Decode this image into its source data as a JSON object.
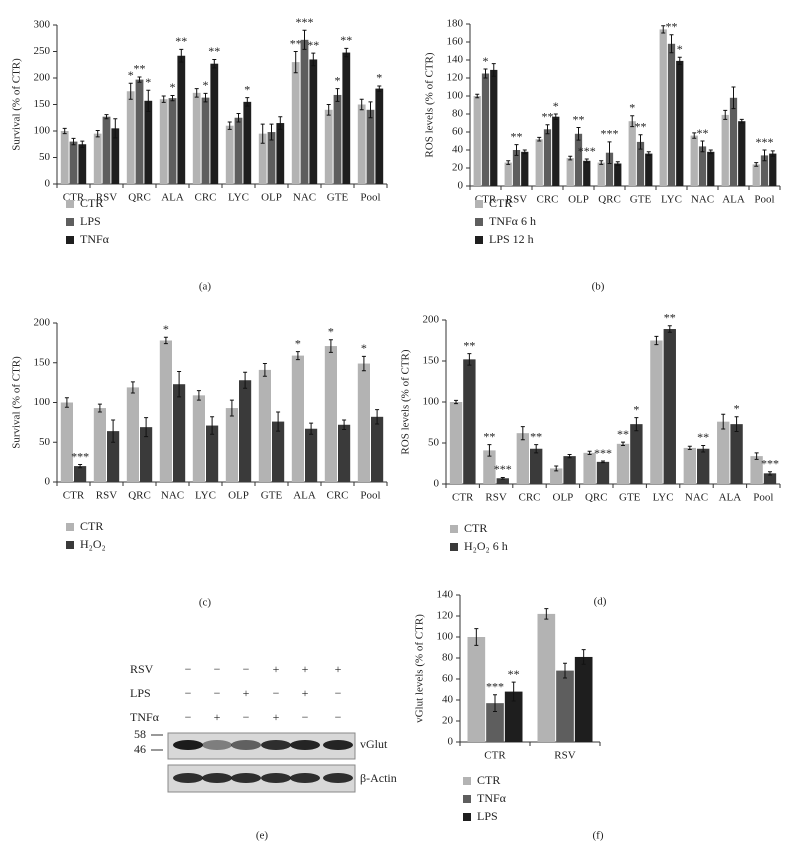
{
  "chart_data": [
    {
      "type": "bar",
      "panel_label": "(a)",
      "y_label": "Survival (% of CTR)",
      "categories": [
        "CTR",
        "RSV",
        "QRC",
        "ALA",
        "CRC",
        "LYC",
        "OLP",
        "NAC",
        "GTE",
        "Pool"
      ],
      "ylim": [
        0,
        300
      ],
      "yticks": [
        0,
        50,
        100,
        150,
        200,
        250,
        300
      ],
      "series": [
        {
          "name": "CTR",
          "color": "#b3b3b3",
          "values": [
            100,
            95,
            175,
            160,
            172,
            110,
            95,
            230,
            140,
            150
          ],
          "errors": [
            5,
            6,
            15,
            6,
            8,
            7,
            18,
            20,
            10,
            10
          ],
          "stars": [
            null,
            null,
            "*",
            null,
            null,
            null,
            null,
            "**",
            null,
            null
          ]
        },
        {
          "name": "LPS",
          "color": "#5e5e5e",
          "values": [
            80,
            127,
            197,
            162,
            163,
            125,
            98,
            272,
            168,
            140
          ],
          "errors": [
            6,
            4,
            5,
            5,
            8,
            8,
            15,
            18,
            12,
            15
          ],
          "stars": [
            null,
            null,
            "**",
            "*",
            "*",
            null,
            null,
            "***",
            "*",
            null
          ]
        },
        {
          "name": "TNFα",
          "color": "#1e1e1e",
          "values": [
            75,
            105,
            157,
            242,
            227,
            155,
            115,
            235,
            248,
            180
          ],
          "errors": [
            6,
            18,
            20,
            12,
            8,
            8,
            12,
            12,
            8,
            5
          ],
          "stars": [
            null,
            null,
            "*",
            "**",
            "**",
            "*",
            null,
            "**",
            "**",
            "*"
          ]
        }
      ]
    },
    {
      "type": "bar",
      "panel_label": "(b)",
      "y_label": "ROS levels (% of CTR)",
      "categories": [
        "CTR",
        "RSV",
        "CRC",
        "OLP",
        "QRC",
        "GTE",
        "LYC",
        "NAC",
        "ALA",
        "Pool"
      ],
      "ylim": [
        0,
        180
      ],
      "yticks": [
        0,
        20,
        40,
        60,
        80,
        100,
        120,
        140,
        160,
        180
      ],
      "series": [
        {
          "name": "CTR",
          "color": "#b3b3b3",
          "values": [
            100,
            26,
            52,
            31,
            26,
            72,
            174,
            56,
            79,
            24
          ],
          "errors": [
            2,
            2,
            2,
            2,
            2,
            6,
            4,
            3,
            5,
            2
          ],
          "stars": [
            null,
            null,
            null,
            null,
            null,
            "*",
            null,
            null,
            null,
            null
          ]
        },
        {
          "name": "TNFα 6 h",
          "color": "#5e5e5e",
          "values": [
            125,
            40,
            63,
            58,
            37,
            49,
            158,
            44,
            98,
            34
          ],
          "errors": [
            5,
            6,
            5,
            7,
            12,
            8,
            10,
            6,
            12,
            6
          ],
          "stars": [
            "*",
            "**",
            "**",
            "**",
            "***",
            "**",
            "**",
            "**",
            null,
            "***"
          ]
        },
        {
          "name": "LPS 12 h",
          "color": "#1e1e1e",
          "values": [
            129,
            38,
            77,
            28,
            25,
            36,
            139,
            38,
            72,
            36
          ],
          "errors": [
            7,
            2,
            3,
            2,
            2,
            2,
            4,
            2,
            2,
            3
          ],
          "stars": [
            null,
            null,
            "*",
            "***",
            null,
            null,
            "*",
            null,
            null,
            null
          ]
        }
      ]
    },
    {
      "type": "bar",
      "panel_label": "(c)",
      "y_label": "Survival (% of CTR)",
      "categories": [
        "CTR",
        "RSV",
        "QRC",
        "NAC",
        "LYC",
        "OLP",
        "GTE",
        "ALA",
        "CRC",
        "Pool"
      ],
      "ylim": [
        0,
        200
      ],
      "yticks": [
        0,
        50,
        100,
        150,
        200
      ],
      "series": [
        {
          "name": "CTR",
          "color": "#b3b3b3",
          "values": [
            100,
            93,
            119,
            178,
            109,
            93,
            141,
            159,
            171,
            149
          ],
          "errors": [
            6,
            5,
            7,
            4,
            6,
            10,
            8,
            5,
            8,
            9
          ],
          "stars": [
            null,
            null,
            null,
            "*",
            null,
            null,
            null,
            "*",
            "*",
            "*"
          ]
        },
        {
          "name": "H₂O₂",
          "color": "#3a3a3a",
          "values": [
            20,
            64,
            69,
            123,
            71,
            128,
            76,
            67,
            72,
            82
          ],
          "errors": [
            2,
            14,
            12,
            16,
            11,
            10,
            12,
            7,
            6,
            9
          ],
          "stars": [
            "***",
            null,
            null,
            null,
            null,
            null,
            null,
            null,
            null,
            null
          ]
        }
      ]
    },
    {
      "type": "bar",
      "panel_label": "(d)",
      "y_label": "ROS levels (% of CTR)",
      "categories": [
        "CTR",
        "RSV",
        "CRC",
        "OLP",
        "QRC",
        "GTE",
        "LYC",
        "NAC",
        "ALA",
        "Pool"
      ],
      "ylim": [
        0,
        200
      ],
      "yticks": [
        0,
        50,
        100,
        150,
        200
      ],
      "series": [
        {
          "name": "CTR",
          "color": "#b3b3b3",
          "values": [
            100,
            41,
            62,
            19,
            38,
            49,
            175,
            44,
            76,
            34
          ],
          "errors": [
            2,
            7,
            8,
            3,
            2,
            2,
            5,
            2,
            9,
            4
          ],
          "stars": [
            null,
            "**",
            null,
            null,
            null,
            "**",
            null,
            null,
            null,
            null
          ]
        },
        {
          "name": "H₂O₂ 6 h",
          "color": "#3a3a3a",
          "values": [
            152,
            7,
            43,
            34,
            27,
            73,
            189,
            43,
            73,
            13
          ],
          "errors": [
            7,
            1,
            5,
            2,
            1,
            8,
            4,
            4,
            9,
            2
          ],
          "stars": [
            "**",
            "***",
            "**",
            null,
            "***",
            "*",
            "**",
            "**",
            "*",
            "***"
          ]
        }
      ]
    },
    {
      "type": "bar",
      "panel_label": "(f)",
      "y_label": "vGlut levels (% of CTR)",
      "categories": [
        "CTR",
        "RSV"
      ],
      "ylim": [
        0,
        140
      ],
      "yticks": [
        0,
        20,
        40,
        60,
        80,
        100,
        120,
        140
      ],
      "series": [
        {
          "name": "CTR",
          "color": "#b3b3b3",
          "values": [
            100,
            122
          ],
          "errors": [
            8,
            5
          ],
          "stars": [
            null,
            null
          ]
        },
        {
          "name": "TNFα",
          "color": "#5e5e5e",
          "values": [
            37,
            68
          ],
          "errors": [
            8,
            7
          ],
          "stars": [
            "***",
            null
          ]
        },
        {
          "name": "LPS",
          "color": "#1e1e1e",
          "values": [
            48,
            81
          ],
          "errors": [
            9,
            7
          ],
          "stars": [
            "**",
            null
          ]
        }
      ]
    }
  ],
  "blot": {
    "panel_label": "(e)",
    "rows": [
      {
        "label": "RSV",
        "signs": [
          "−",
          "−",
          "−",
          "+",
          "+",
          "+"
        ]
      },
      {
        "label": "LPS",
        "signs": [
          "−",
          "−",
          "+",
          "−",
          "+",
          "−"
        ]
      },
      {
        "label": "TNFα",
        "signs": [
          "−",
          "+",
          "−",
          "+",
          "−",
          "−"
        ]
      }
    ],
    "markers": [
      "58",
      "46"
    ],
    "bands": [
      "vGlut",
      "β-Actin"
    ]
  }
}
